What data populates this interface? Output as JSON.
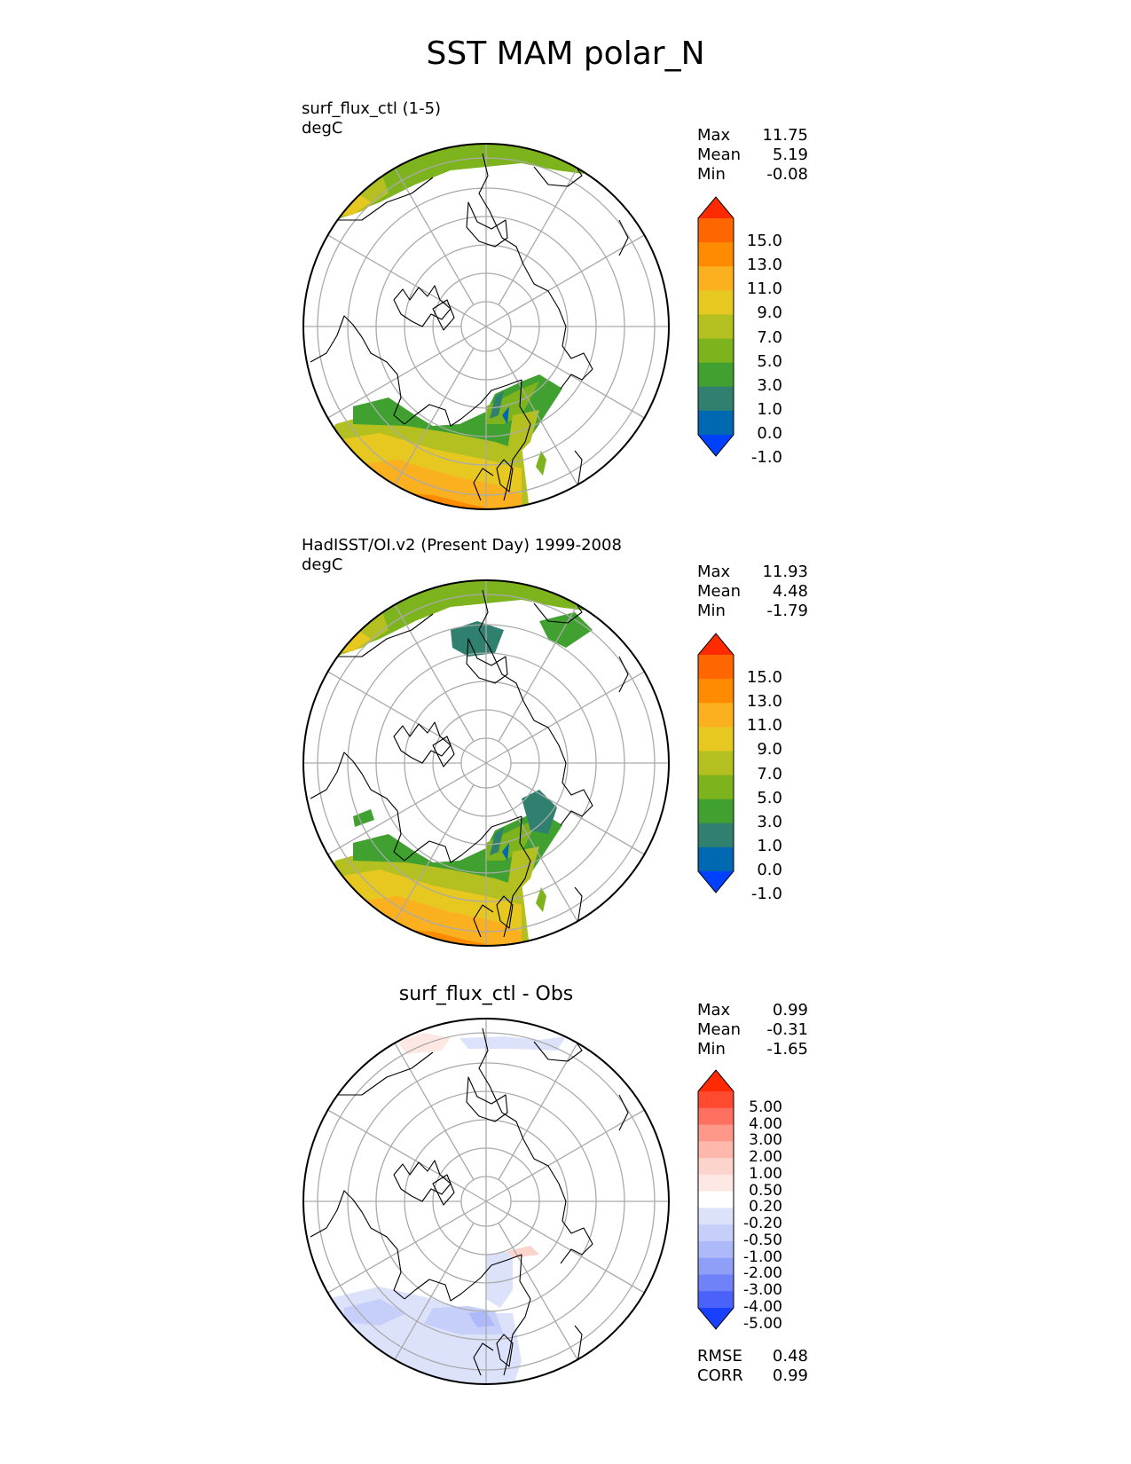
{
  "title": "SST MAM polar_N",
  "panels": [
    {
      "title": "surf_flux_ctl (1-5)",
      "units": "degC",
      "stats": [
        {
          "label": "Max",
          "value": "11.75"
        },
        {
          "label": "Mean",
          "value": "5.19"
        },
        {
          "label": "Min",
          "value": "-0.08"
        }
      ],
      "colorbar": {
        "labels": [
          "15.0",
          "13.0",
          "11.0",
          "9.0",
          "7.0",
          "5.0",
          "3.0",
          "1.0",
          "0.0",
          "-1.0"
        ],
        "colors": [
          "#ff2a00",
          "#ff6600",
          "#ff8c00",
          "#fbb020",
          "#e6c820",
          "#b4c020",
          "#7db41e",
          "#40a030",
          "#308070",
          "#0068b0",
          "#0040ff"
        ]
      }
    },
    {
      "title": "HadISST/OI.v2 (Present Day) 1999-2008",
      "units": "degC",
      "stats": [
        {
          "label": "Max",
          "value": "11.93"
        },
        {
          "label": "Mean",
          "value": "4.48"
        },
        {
          "label": "Min",
          "value": "-1.79"
        }
      ],
      "colorbar": {
        "labels": [
          "15.0",
          "13.0",
          "11.0",
          "9.0",
          "7.0",
          "5.0",
          "3.0",
          "1.0",
          "0.0",
          "-1.0"
        ],
        "colors": [
          "#ff2a00",
          "#ff6600",
          "#ff8c00",
          "#fbb020",
          "#e6c820",
          "#b4c020",
          "#7db41e",
          "#40a030",
          "#308070",
          "#0068b0",
          "#0040ff"
        ]
      }
    },
    {
      "title": "surf_flux_ctl - Obs",
      "units": "",
      "stats": [
        {
          "label": "Max",
          "value": "0.99"
        },
        {
          "label": "Mean",
          "value": "-0.31"
        },
        {
          "label": "Min",
          "value": "-1.65"
        }
      ],
      "colorbar": {
        "labels": [
          "5.00",
          "4.00",
          "3.00",
          "2.00",
          "1.00",
          "0.50",
          "0.20",
          "-0.20",
          "-0.50",
          "-1.00",
          "-2.00",
          "-3.00",
          "-4.00",
          "-5.00"
        ],
        "colors": [
          "#ff2a00",
          "#ff4a30",
          "#ff7060",
          "#ff9888",
          "#ffb8ab",
          "#fdd4cc",
          "#fde8e4",
          "#ffffff",
          "#dde2fb",
          "#c6cefa",
          "#adb9f9",
          "#8f9ef7",
          "#6f82f8",
          "#4a62f9",
          "#1a40ff"
        ]
      },
      "metrics": [
        {
          "label": "RMSE",
          "value": "0.48"
        },
        {
          "label": "CORR",
          "value": "0.99"
        }
      ]
    }
  ]
}
